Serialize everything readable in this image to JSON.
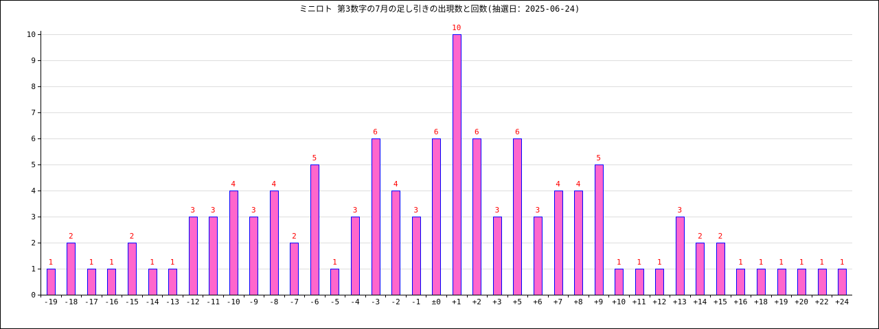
{
  "chart_data": {
    "type": "bar",
    "title": "ミニロト 第3数字の7月の足し引きの出現数と回数(抽選日：2025-06-24)",
    "xlabel": "",
    "ylabel": "",
    "ylim": [
      0,
      10
    ],
    "yticks": [
      "0",
      "1",
      "2",
      "3",
      "4",
      "5",
      "6",
      "7",
      "8",
      "9",
      "10"
    ],
    "grid": true,
    "categories": [
      "-19",
      "-18",
      "-17",
      "-16",
      "-15",
      "-14",
      "-13",
      "-12",
      "-11",
      "-10",
      "-9",
      "-8",
      "-7",
      "-6",
      "-5",
      "-4",
      "-3",
      "-2",
      "-1",
      "±0",
      "+1",
      "+2",
      "+3",
      "+5",
      "+6",
      "+7",
      "+8",
      "+9",
      "+10",
      "+11",
      "+12",
      "+13",
      "+14",
      "+15",
      "+16",
      "+18",
      "+19",
      "+20",
      "+22",
      "+24"
    ],
    "values": [
      1,
      2,
      1,
      1,
      2,
      1,
      1,
      3,
      3,
      4,
      3,
      4,
      2,
      5,
      1,
      3,
      6,
      4,
      3,
      6,
      10,
      6,
      3,
      6,
      3,
      4,
      4,
      5,
      1,
      1,
      1,
      3,
      2,
      2,
      1,
      1,
      1,
      1,
      1,
      1
    ],
    "colors": {
      "bar_fill": "#ff66cc",
      "bar_stroke": "#0000ff",
      "data_label": "#ff0000",
      "grid": "#dddddd",
      "axis": "#000000"
    }
  }
}
